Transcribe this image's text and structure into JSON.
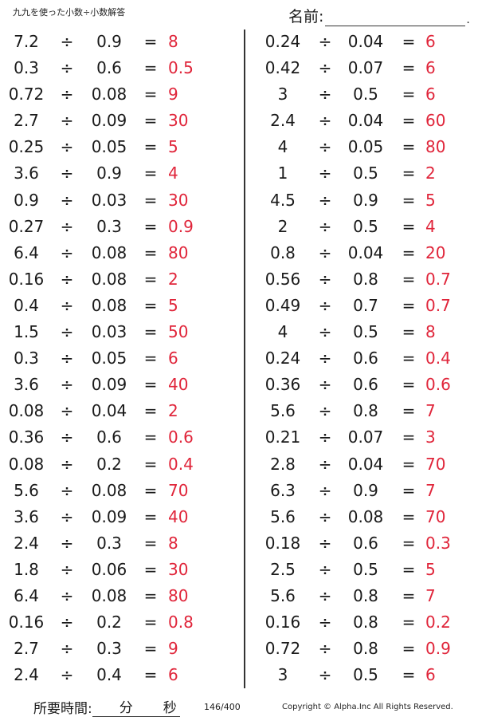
{
  "header": {
    "title": "九九を使った小数÷小数解答",
    "name_label": "名前:",
    "name_trailing_dot": "."
  },
  "symbols": {
    "divide": "÷",
    "equals": "="
  },
  "left_column": [
    {
      "dividend": "7.2",
      "divisor": "0.9",
      "answer": "8"
    },
    {
      "dividend": "0.3",
      "divisor": "0.6",
      "answer": "0.5"
    },
    {
      "dividend": "0.72",
      "divisor": "0.08",
      "answer": "9"
    },
    {
      "dividend": "2.7",
      "divisor": "0.09",
      "answer": "30"
    },
    {
      "dividend": "0.25",
      "divisor": "0.05",
      "answer": "5"
    },
    {
      "dividend": "3.6",
      "divisor": "0.9",
      "answer": "4"
    },
    {
      "dividend": "0.9",
      "divisor": "0.03",
      "answer": "30"
    },
    {
      "dividend": "0.27",
      "divisor": "0.3",
      "answer": "0.9"
    },
    {
      "dividend": "6.4",
      "divisor": "0.08",
      "answer": "80"
    },
    {
      "dividend": "0.16",
      "divisor": "0.08",
      "answer": "2"
    },
    {
      "dividend": "0.4",
      "divisor": "0.08",
      "answer": "5"
    },
    {
      "dividend": "1.5",
      "divisor": "0.03",
      "answer": "50"
    },
    {
      "dividend": "0.3",
      "divisor": "0.05",
      "answer": "6"
    },
    {
      "dividend": "3.6",
      "divisor": "0.09",
      "answer": "40"
    },
    {
      "dividend": "0.08",
      "divisor": "0.04",
      "answer": "2"
    },
    {
      "dividend": "0.36",
      "divisor": "0.6",
      "answer": "0.6"
    },
    {
      "dividend": "0.08",
      "divisor": "0.2",
      "answer": "0.4"
    },
    {
      "dividend": "5.6",
      "divisor": "0.08",
      "answer": "70"
    },
    {
      "dividend": "3.6",
      "divisor": "0.09",
      "answer": "40"
    },
    {
      "dividend": "2.4",
      "divisor": "0.3",
      "answer": "8"
    },
    {
      "dividend": "1.8",
      "divisor": "0.06",
      "answer": "30"
    },
    {
      "dividend": "6.4",
      "divisor": "0.08",
      "answer": "80"
    },
    {
      "dividend": "0.16",
      "divisor": "0.2",
      "answer": "0.8"
    },
    {
      "dividend": "2.7",
      "divisor": "0.3",
      "answer": "9"
    },
    {
      "dividend": "2.4",
      "divisor": "0.4",
      "answer": "6"
    }
  ],
  "right_column": [
    {
      "dividend": "0.24",
      "divisor": "0.04",
      "answer": "6"
    },
    {
      "dividend": "0.42",
      "divisor": "0.07",
      "answer": "6"
    },
    {
      "dividend": "3",
      "divisor": "0.5",
      "answer": "6"
    },
    {
      "dividend": "2.4",
      "divisor": "0.04",
      "answer": "60"
    },
    {
      "dividend": "4",
      "divisor": "0.05",
      "answer": "80"
    },
    {
      "dividend": "1",
      "divisor": "0.5",
      "answer": "2"
    },
    {
      "dividend": "4.5",
      "divisor": "0.9",
      "answer": "5"
    },
    {
      "dividend": "2",
      "divisor": "0.5",
      "answer": "4"
    },
    {
      "dividend": "0.8",
      "divisor": "0.04",
      "answer": "20"
    },
    {
      "dividend": "0.56",
      "divisor": "0.8",
      "answer": "0.7"
    },
    {
      "dividend": "0.49",
      "divisor": "0.7",
      "answer": "0.7"
    },
    {
      "dividend": "4",
      "divisor": "0.5",
      "answer": "8"
    },
    {
      "dividend": "0.24",
      "divisor": "0.6",
      "answer": "0.4"
    },
    {
      "dividend": "0.36",
      "divisor": "0.6",
      "answer": "0.6"
    },
    {
      "dividend": "5.6",
      "divisor": "0.8",
      "answer": "7"
    },
    {
      "dividend": "0.21",
      "divisor": "0.07",
      "answer": "3"
    },
    {
      "dividend": "2.8",
      "divisor": "0.04",
      "answer": "70"
    },
    {
      "dividend": "6.3",
      "divisor": "0.9",
      "answer": "7"
    },
    {
      "dividend": "5.6",
      "divisor": "0.08",
      "answer": "70"
    },
    {
      "dividend": "0.18",
      "divisor": "0.6",
      "answer": "0.3"
    },
    {
      "dividend": "2.5",
      "divisor": "0.5",
      "answer": "5"
    },
    {
      "dividend": "5.6",
      "divisor": "0.8",
      "answer": "7"
    },
    {
      "dividend": "0.16",
      "divisor": "0.8",
      "answer": "0.2"
    },
    {
      "dividend": "0.72",
      "divisor": "0.8",
      "answer": "0.9"
    },
    {
      "dividend": "3",
      "divisor": "0.5",
      "answer": "6"
    }
  ],
  "footer": {
    "time_label": "所要時間:",
    "minutes_unit": "分",
    "seconds_unit": "秒",
    "page_count": "146/400",
    "copyright": "Copyright © Alpha.Inc All Rights Reserved."
  },
  "colors": {
    "answer": "#e0253a",
    "text": "#1a1a1a"
  }
}
